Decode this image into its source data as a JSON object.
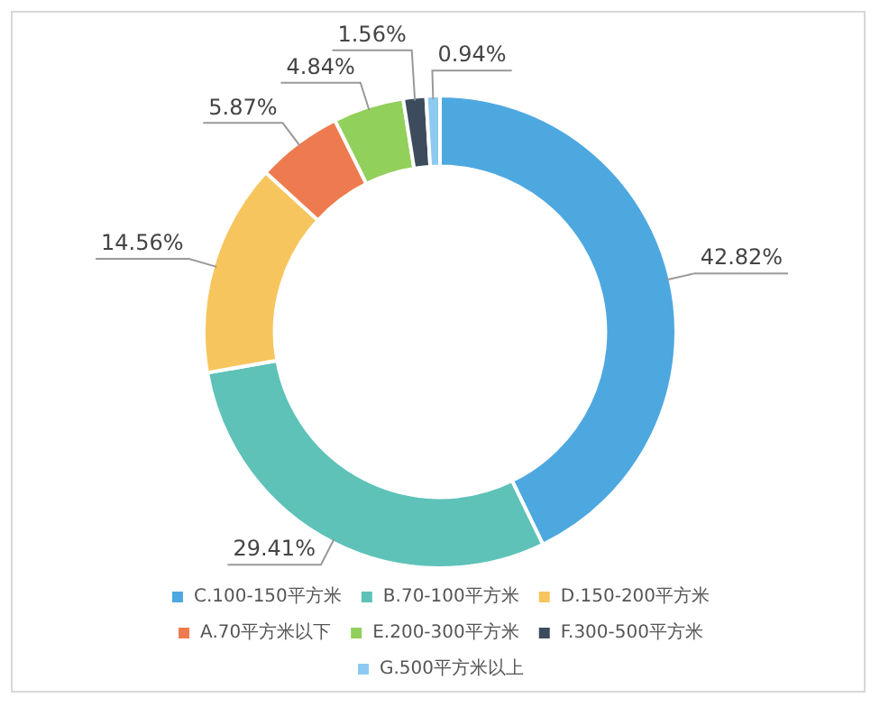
{
  "chart_data": {
    "type": "donut",
    "categories": [
      "C.100-150平方米",
      "B.70-100平方米",
      "D.150-200平方米",
      "A.70平方米以下",
      "E.200-300平方米",
      "F.300-500平方米",
      "G.500平方米以上"
    ],
    "values": [
      42.82,
      29.41,
      14.56,
      5.87,
      4.84,
      1.56,
      0.94
    ],
    "value_labels": [
      "42.82%",
      "29.41%",
      "14.56%",
      "5.87%",
      "4.84%",
      "1.56%",
      "0.94%"
    ],
    "colors": [
      "#4ea8e0",
      "#5ec2b8",
      "#f7c55e",
      "#ee7b4f",
      "#92d05c",
      "#3d4c5c",
      "#8ccaf2"
    ],
    "legend": "bottom"
  }
}
